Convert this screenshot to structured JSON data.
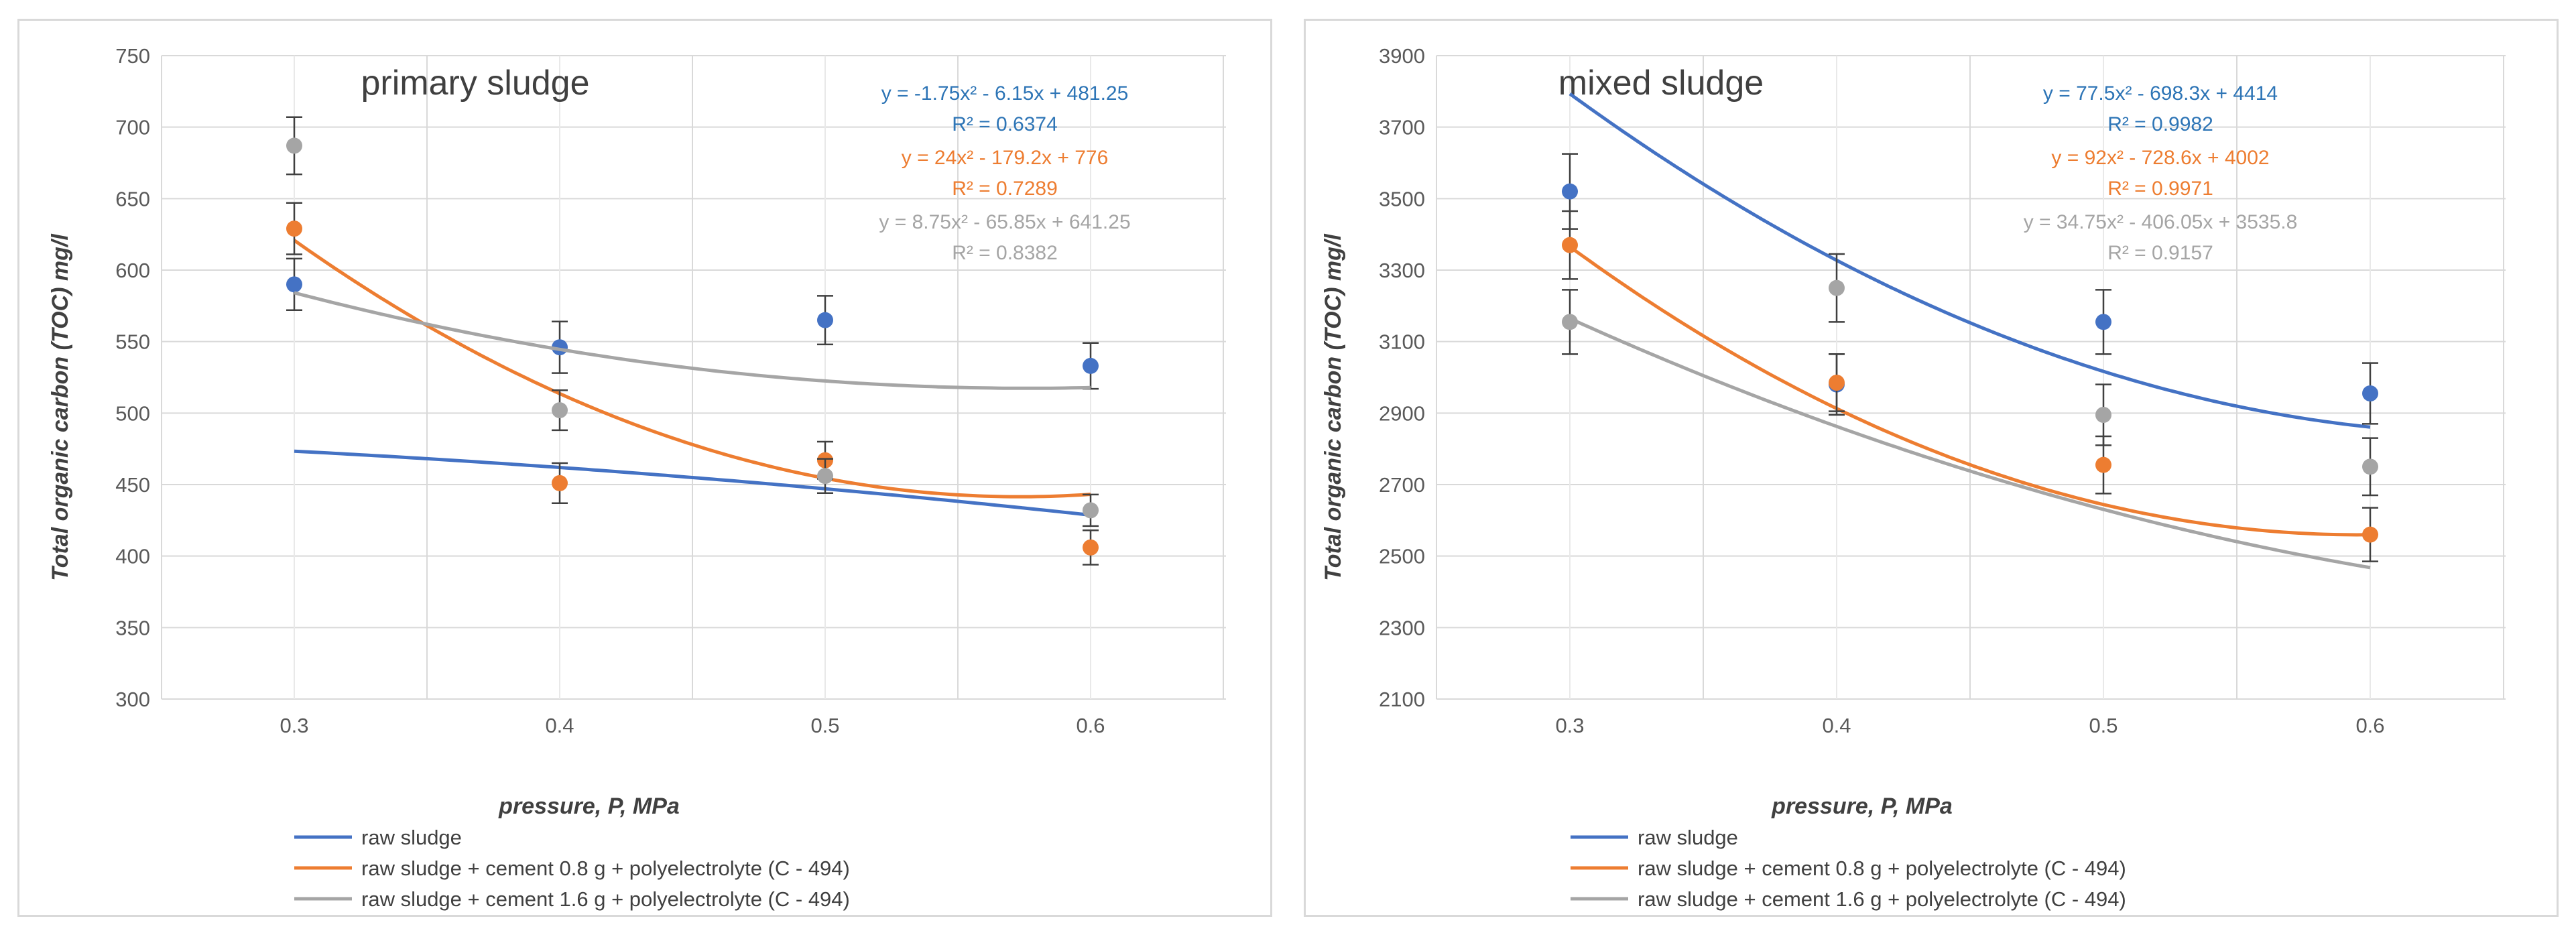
{
  "chart_data": [
    {
      "type": "scatter",
      "title": "primary sludge",
      "xlabel": "pressure, P,  MPa",
      "ylabel": "Total organic carbon (TOC) mg/l",
      "x_ticks": [
        "0.3",
        "0.4",
        "0.5",
        "0.6"
      ],
      "x_values": [
        0.3,
        0.4,
        0.5,
        0.6
      ],
      "ylim": [
        300,
        750
      ],
      "y_ticks": [
        300,
        350,
        400,
        450,
        500,
        550,
        600,
        650,
        700,
        750
      ],
      "grid": true,
      "legend_position": "bottom-left",
      "series": [
        {
          "name": "raw sludge",
          "color": "#4472c4",
          "label_color": "#2e75b6",
          "values": [
            590,
            546,
            565,
            533
          ],
          "errors": [
            18,
            18,
            17,
            16
          ],
          "trend": [
            -1.75,
            -6.15,
            481.25
          ],
          "equation": "y = -1.75x² - 6.15x + 481.25",
          "r2": "R² = 0.6374"
        },
        {
          "name": "raw sludge + cement 0.8 g + polyelectrolyte (C - 494)",
          "color": "#ed7d31",
          "label_color": "#ed7d31",
          "values": [
            629,
            451,
            467,
            406
          ],
          "errors": [
            18,
            14,
            13,
            12
          ],
          "trend": [
            24,
            -179.2,
            776
          ],
          "equation": "y = 24x² - 179.2x + 776",
          "r2": "R² = 0.7289"
        },
        {
          "name": "raw sludge + cement 1.6 g + polyelectrolyte (C - 494)",
          "color": "#a5a5a5",
          "label_color": "#a5a5a5",
          "values": [
            687,
            502,
            456,
            432
          ],
          "errors": [
            20,
            14,
            12,
            11
          ],
          "trend": [
            8.75,
            -65.85,
            641.25
          ],
          "equation": "y = 8.75x² - 65.85x + 641.25",
          "r2": "R² = 0.8382"
        }
      ]
    },
    {
      "type": "scatter",
      "title": "mixed sludge",
      "xlabel": "pressure, P,  MPa",
      "ylabel": "Total organic carbon (TOC) mg/l",
      "x_ticks": [
        "0.3",
        "0.4",
        "0.5",
        "0.6"
      ],
      "x_values": [
        0.3,
        0.4,
        0.5,
        0.6
      ],
      "ylim": [
        2100,
        3900
      ],
      "y_ticks": [
        2100,
        2300,
        2500,
        2700,
        2900,
        3100,
        3300,
        3500,
        3700,
        3900
      ],
      "grid": true,
      "legend_position": "bottom-left",
      "series": [
        {
          "name": "raw sludge",
          "color": "#4472c4",
          "label_color": "#2e75b6",
          "values": [
            3520,
            2980,
            3155,
            2955
          ],
          "errors": [
            105,
            85,
            90,
            85
          ],
          "trend": [
            77.5,
            -698.3,
            4414
          ],
          "equation": "y = 77.5x² - 698.3x + 4414",
          "r2": "R² = 0.9982"
        },
        {
          "name": "raw sludge + cement 0.8 g + polyelectrolyte (C - 494)",
          "color": "#ed7d31",
          "label_color": "#ed7d31",
          "values": [
            3370,
            2985,
            2755,
            2560
          ],
          "errors": [
            95,
            80,
            80,
            75
          ],
          "trend": [
            92,
            -728.6,
            4002
          ],
          "equation": "y = 92x² - 728.6x + 4002",
          "r2": "R² = 0.9971"
        },
        {
          "name": "raw sludge + cement 1.6 g + polyelectrolyte (C - 494)",
          "color": "#a5a5a5",
          "label_color": "#a5a5a5",
          "values": [
            3155,
            3250,
            2895,
            2750
          ],
          "errors": [
            90,
            95,
            85,
            80
          ],
          "trend": [
            34.75,
            -406.05,
            3535.8
          ],
          "equation": "y = 34.75x² - 406.05x + 3535.8",
          "r2": "R² = 0.9157"
        }
      ]
    }
  ]
}
